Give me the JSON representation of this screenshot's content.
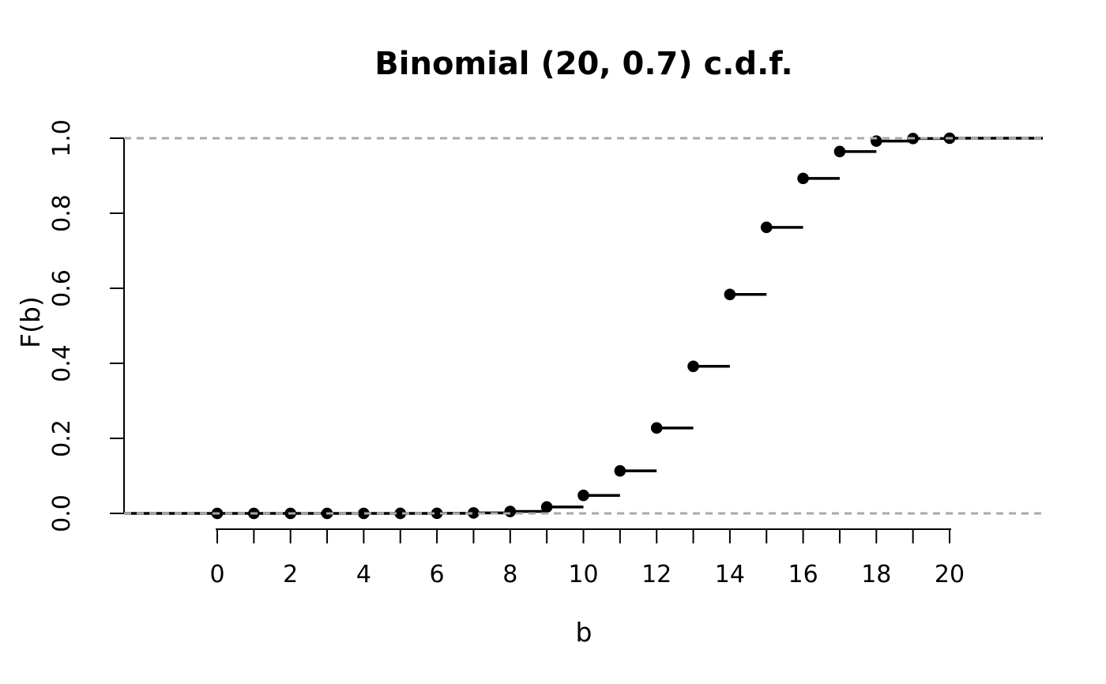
{
  "page": {
    "background": "#ffffff"
  },
  "chart_data": {
    "type": "line",
    "style": "step-cdf",
    "title": "Binomial (20, 0.7) c.d.f.",
    "xlabel": "b",
    "ylabel": "F(b)",
    "x": [
      0,
      1,
      2,
      3,
      4,
      5,
      6,
      7,
      8,
      9,
      10,
      11,
      12,
      13,
      14,
      15,
      16,
      17,
      18,
      19,
      20
    ],
    "y": [
      0.0,
      0.0,
      0.0,
      1e-06,
      6e-06,
      4.3e-05,
      0.000261,
      0.001279,
      0.005138,
      0.017145,
      0.047962,
      0.113331,
      0.227728,
      0.39199,
      0.583629,
      0.762492,
      0.892913,
      0.964516,
      0.992363,
      0.999202,
      1.0
    ],
    "xlim": [
      0,
      20
    ],
    "ylim": [
      0,
      1
    ],
    "x_minor_ticks": [
      0,
      1,
      2,
      3,
      4,
      5,
      6,
      7,
      8,
      9,
      10,
      11,
      12,
      13,
      14,
      15,
      16,
      17,
      18,
      19,
      20
    ],
    "x_tick_labels": [
      "0",
      "2",
      "4",
      "6",
      "8",
      "10",
      "12",
      "14",
      "16",
      "18",
      "20"
    ],
    "x_tick_label_values": [
      0,
      2,
      4,
      6,
      8,
      10,
      12,
      14,
      16,
      18,
      20
    ],
    "y_ticks": [
      0.0,
      0.2,
      0.4,
      0.6,
      0.8,
      1.0
    ],
    "y_tick_labels": [
      "0.0",
      "0.2",
      "0.4",
      "0.6",
      "0.8",
      "1.0"
    ],
    "grid": false,
    "legend": "none",
    "reference_lines": {
      "y_values": [
        0,
        1
      ],
      "line_style": "dashed",
      "color": "#a9a9a9"
    },
    "marker": {
      "shape": "filled-circle",
      "color": "#000000"
    },
    "line_color": "#000000",
    "axis_color": "#000000"
  }
}
